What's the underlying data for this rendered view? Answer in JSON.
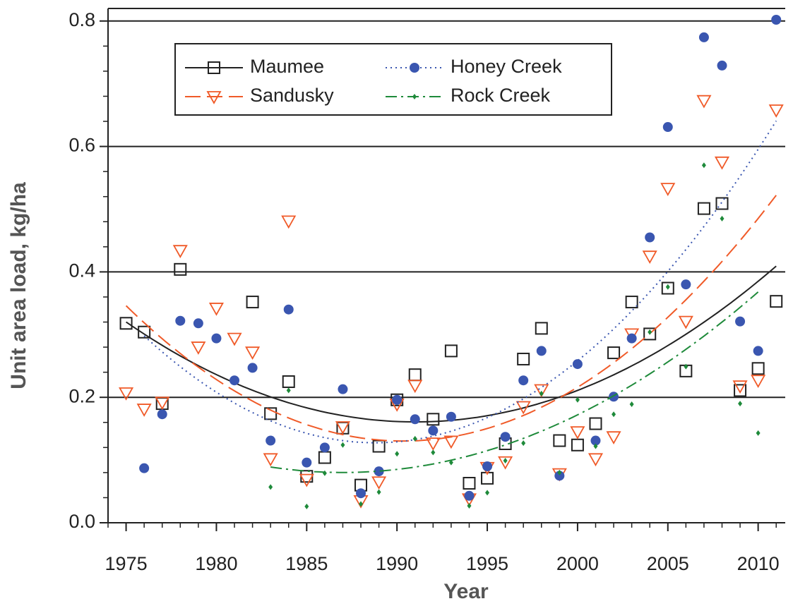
{
  "chart_data": {
    "type": "scatter",
    "xlabel": "Year",
    "ylabel": "Unit area load, kg/ha",
    "x": [
      1975,
      1976,
      1977,
      1978,
      1979,
      1980,
      1981,
      1982,
      1983,
      1984,
      1985,
      1986,
      1987,
      1988,
      1989,
      1990,
      1991,
      1992,
      1993,
      1994,
      1995,
      1996,
      1997,
      1998,
      1999,
      2000,
      2001,
      2002,
      2003,
      2004,
      2005,
      2006,
      2007,
      2008,
      2009,
      2010,
      2011
    ],
    "series": [
      {
        "name": "Maumee",
        "color": "#222222",
        "marker": "square",
        "line_style": "solid",
        "values": [
          0.318,
          0.304,
          0.19,
          0.404,
          null,
          null,
          null,
          0.352,
          0.174,
          0.225,
          0.074,
          0.104,
          0.151,
          0.06,
          0.122,
          0.196,
          0.236,
          0.165,
          0.274,
          0.063,
          0.071,
          0.126,
          0.261,
          0.31,
          0.131,
          0.124,
          0.158,
          0.271,
          0.352,
          0.301,
          0.374,
          0.242,
          0.501,
          0.509,
          0.211,
          0.246,
          0.353
        ]
      },
      {
        "name": "Sandusky",
        "color": "#f05a28",
        "marker": "triangle-down",
        "line_style": "dashed",
        "values": [
          0.207,
          0.181,
          0.192,
          0.434,
          0.28,
          0.342,
          0.294,
          0.272,
          0.102,
          0.481,
          0.069,
          null,
          0.153,
          0.035,
          0.065,
          0.189,
          0.219,
          0.127,
          0.13,
          0.038,
          0.088,
          0.097,
          0.185,
          0.212,
          0.078,
          0.145,
          0.102,
          0.137,
          0.301,
          0.425,
          0.533,
          0.321,
          0.673,
          0.575,
          0.218,
          0.227,
          0.658
        ]
      },
      {
        "name": "Honey Creek",
        "color": "#3a56b0",
        "marker": "circle",
        "line_style": "dotted",
        "values": [
          null,
          0.087,
          0.173,
          0.322,
          0.318,
          0.294,
          0.227,
          0.247,
          0.131,
          0.34,
          0.096,
          0.12,
          0.213,
          0.047,
          0.082,
          0.196,
          0.165,
          0.147,
          0.169,
          0.043,
          0.09,
          0.137,
          0.227,
          0.274,
          0.075,
          0.253,
          0.131,
          0.201,
          0.294,
          0.455,
          0.631,
          0.38,
          0.774,
          0.729,
          0.321,
          0.274,
          0.802
        ]
      },
      {
        "name": "Rock Creek",
        "color": "#1e8a3a",
        "marker": "diamond",
        "line_style": "dashdot",
        "values": [
          null,
          null,
          null,
          null,
          null,
          null,
          null,
          null,
          0.057,
          0.211,
          0.026,
          0.079,
          0.124,
          0.03,
          0.049,
          0.11,
          0.134,
          0.112,
          0.096,
          0.027,
          0.048,
          0.099,
          0.127,
          0.206,
          0.08,
          0.196,
          0.122,
          0.173,
          0.189,
          0.304,
          0.376,
          0.249,
          0.57,
          0.485,
          0.19,
          0.143,
          null
        ]
      }
    ],
    "xlim": [
      1974,
      2011.5
    ],
    "xticks": [
      1975,
      1980,
      1985,
      1990,
      1995,
      2000,
      2005,
      2010
    ],
    "xticks_minor": [
      1974,
      1975,
      1976,
      1977,
      1978,
      1979,
      1980,
      1981,
      1982,
      1983,
      1984,
      1985,
      1986,
      1987,
      1988,
      1989,
      1990,
      1991,
      1992,
      1993,
      1994,
      1995,
      1996,
      1997,
      1998,
      1999,
      2000,
      2001,
      2002,
      2003,
      2004,
      2005,
      2006,
      2007,
      2008,
      2009,
      2010,
      2011
    ],
    "ylim": [
      0,
      0.82
    ],
    "yticks": [
      {
        "value": 0,
        "label": "0.0"
      },
      0.2,
      0.4,
      0.6,
      0.8
    ],
    "yticks_minor": [
      0.04,
      0.08,
      0.12,
      0.16,
      0.24,
      0.28,
      0.32,
      0.36,
      0.44,
      0.48,
      0.52,
      0.56,
      0.64,
      0.68,
      0.72,
      0.76
    ],
    "grid": true,
    "legend": "upper left",
    "trend": "quadratic"
  }
}
